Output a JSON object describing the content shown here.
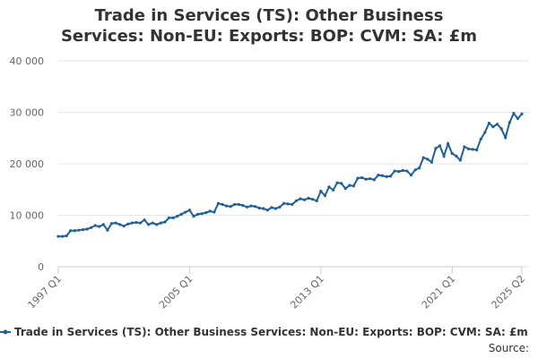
{
  "chart_data": {
    "type": "line",
    "title": "Trade in Services (TS): Other Business Services: Non-EU: Exports: BOP: CVM: SA: £m",
    "categories": [
      "1997 Q1",
      null,
      null,
      null,
      null,
      null,
      null,
      null,
      null,
      null,
      null,
      null,
      null,
      null,
      null,
      null,
      null,
      null,
      null,
      null,
      null,
      null,
      null,
      null,
      null,
      null,
      null,
      null,
      null,
      null,
      null,
      null,
      "2005 Q1",
      null,
      null,
      null,
      null,
      null,
      null,
      null,
      null,
      null,
      null,
      null,
      null,
      null,
      null,
      null,
      null,
      null,
      null,
      null,
      null,
      null,
      null,
      null,
      null,
      null,
      null,
      null,
      null,
      null,
      null,
      null,
      "2013 Q1",
      null,
      null,
      null,
      null,
      null,
      null,
      null,
      null,
      null,
      null,
      null,
      null,
      null,
      null,
      null,
      null,
      null,
      null,
      null,
      null,
      null,
      null,
      null,
      null,
      null,
      null,
      null,
      null,
      null,
      null,
      null,
      "2021 Q1",
      null,
      null,
      null,
      null,
      null,
      null,
      null,
      null,
      null,
      null,
      null,
      null,
      null,
      null,
      null,
      null,
      "2025 Q2"
    ],
    "series": [
      {
        "name": "Trade in Services (TS): Other Business Services: Non-EU: Exports: BOP: CVM: SA: £m",
        "color": "#206095",
        "values": [
          5900,
          5900,
          6000,
          7000,
          7000,
          7100,
          7200,
          7300,
          7600,
          8000,
          7800,
          8200,
          7100,
          8400,
          8500,
          8200,
          7900,
          8300,
          8500,
          8600,
          8500,
          9100,
          8200,
          8500,
          8200,
          8500,
          8700,
          9500,
          9500,
          9800,
          10200,
          10600,
          11000,
          9800,
          10200,
          10300,
          10500,
          10800,
          10600,
          12300,
          12100,
          11800,
          11700,
          12100,
          12100,
          11900,
          11600,
          11800,
          11700,
          11400,
          11300,
          11000,
          11500,
          11300,
          11600,
          12300,
          12200,
          12100,
          12800,
          13200,
          13000,
          13300,
          13100,
          12800,
          14700,
          13800,
          15500,
          14900,
          16300,
          16200,
          15200,
          15800,
          15700,
          17200,
          17300,
          17000,
          17100,
          16900,
          17800,
          17700,
          17500,
          17600,
          18600,
          18500,
          18700,
          18600,
          17800,
          18800,
          19200,
          21200,
          20900,
          20300,
          23000,
          23500,
          21500,
          23900,
          22000,
          21500,
          20700,
          23300,
          22900,
          22800,
          22700,
          24800,
          26100,
          27900,
          27200,
          27700,
          26800,
          25100,
          28000,
          29800,
          28800,
          29700
        ]
      }
    ],
    "ylim": [
      0,
      40000
    ],
    "yticks": [
      0,
      {
        "value": 10000,
        "label": "10 000"
      },
      {
        "value": 20000,
        "label": "20 000"
      },
      {
        "value": 30000,
        "label": "30 000"
      },
      {
        "value": 40000,
        "label": "40 000"
      }
    ],
    "grid": true,
    "legend": "bottom",
    "source": "Source:"
  }
}
